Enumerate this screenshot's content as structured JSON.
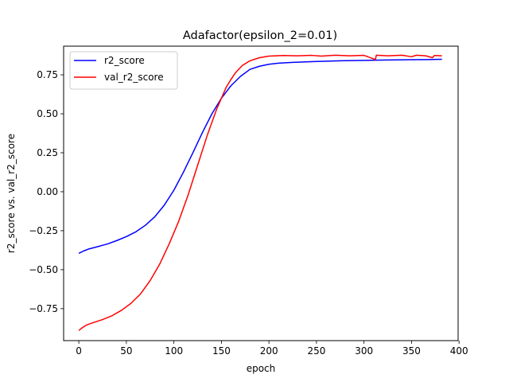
{
  "chart_data": {
    "type": "line",
    "title": "Adafactor(epsilon_2=0.01)",
    "xlabel": "epoch",
    "ylabel": "r2_score vs. val_r2_score",
    "xlim": [
      -16,
      399
    ],
    "ylim": [
      -0.955,
      0.934
    ],
    "xticks": [
      0,
      50,
      100,
      150,
      200,
      250,
      300,
      350,
      400
    ],
    "yticks": [
      -0.75,
      -0.5,
      -0.25,
      0.0,
      0.25,
      0.5,
      0.75
    ],
    "xtick_labels": [
      "0",
      "50",
      "100",
      "150",
      "200",
      "250",
      "300",
      "350",
      "400"
    ],
    "ytick_labels": [
      "−0.75",
      "−0.50",
      "−0.25",
      "0.00",
      "0.25",
      "0.50",
      "0.75"
    ],
    "grid": false,
    "legend_position": "top-left",
    "series": [
      {
        "name": "r2_score",
        "color": "#0000ff",
        "points": [
          [
            0,
            -0.395
          ],
          [
            5,
            -0.38
          ],
          [
            10,
            -0.368
          ],
          [
            20,
            -0.352
          ],
          [
            30,
            -0.335
          ],
          [
            40,
            -0.313
          ],
          [
            50,
            -0.288
          ],
          [
            60,
            -0.257
          ],
          [
            70,
            -0.215
          ],
          [
            80,
            -0.16
          ],
          [
            90,
            -0.085
          ],
          [
            100,
            0.01
          ],
          [
            110,
            0.125
          ],
          [
            120,
            0.25
          ],
          [
            130,
            0.38
          ],
          [
            140,
            0.5
          ],
          [
            150,
            0.6
          ],
          [
            155,
            0.64
          ],
          [
            160,
            0.68
          ],
          [
            170,
            0.74
          ],
          [
            180,
            0.785
          ],
          [
            190,
            0.805
          ],
          [
            200,
            0.818
          ],
          [
            210,
            0.825
          ],
          [
            225,
            0.83
          ],
          [
            250,
            0.836
          ],
          [
            275,
            0.84
          ],
          [
            300,
            0.843
          ],
          [
            325,
            0.845
          ],
          [
            350,
            0.847
          ],
          [
            365,
            0.848
          ],
          [
            382,
            0.85
          ]
        ]
      },
      {
        "name": "val_r2_score",
        "color": "#ff0000",
        "points": [
          [
            0,
            -0.89
          ],
          [
            3,
            -0.875
          ],
          [
            8,
            -0.855
          ],
          [
            15,
            -0.84
          ],
          [
            25,
            -0.82
          ],
          [
            35,
            -0.795
          ],
          [
            45,
            -0.76
          ],
          [
            55,
            -0.715
          ],
          [
            65,
            -0.655
          ],
          [
            75,
            -0.57
          ],
          [
            85,
            -0.465
          ],
          [
            95,
            -0.335
          ],
          [
            105,
            -0.19
          ],
          [
            115,
            -0.02
          ],
          [
            125,
            0.17
          ],
          [
            135,
            0.36
          ],
          [
            145,
            0.53
          ],
          [
            155,
            0.67
          ],
          [
            160,
            0.72
          ],
          [
            165,
            0.765
          ],
          [
            172,
            0.81
          ],
          [
            180,
            0.84
          ],
          [
            190,
            0.86
          ],
          [
            200,
            0.87
          ],
          [
            215,
            0.874
          ],
          [
            230,
            0.872
          ],
          [
            245,
            0.875
          ],
          [
            255,
            0.87
          ],
          [
            270,
            0.876
          ],
          [
            285,
            0.872
          ],
          [
            300,
            0.875
          ],
          [
            312,
            0.848
          ],
          [
            313,
            0.876
          ],
          [
            325,
            0.872
          ],
          [
            340,
            0.876
          ],
          [
            350,
            0.866
          ],
          [
            355,
            0.876
          ],
          [
            365,
            0.872
          ],
          [
            372,
            0.86
          ],
          [
            374,
            0.874
          ],
          [
            382,
            0.872
          ]
        ]
      }
    ]
  }
}
